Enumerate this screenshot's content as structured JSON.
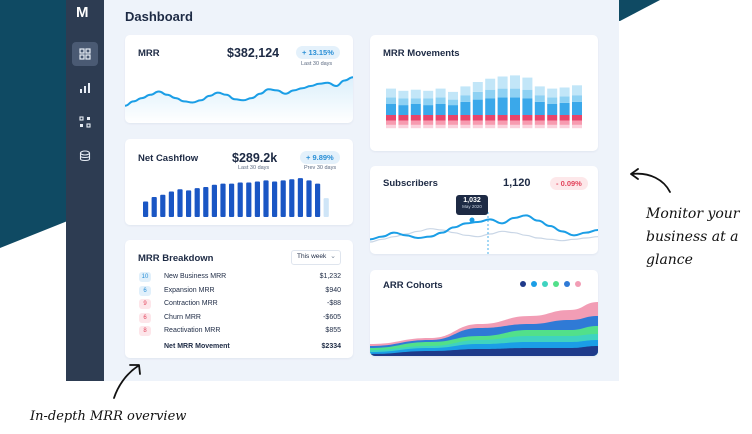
{
  "app": {
    "logo": "M",
    "title": "Dashboard"
  },
  "sidebar": {
    "items": [
      {
        "icon": "dashboard-grid-icon",
        "active": true
      },
      {
        "icon": "bar-chart-icon",
        "active": false
      },
      {
        "icon": "widgets-icon",
        "active": false
      },
      {
        "icon": "database-icon",
        "active": false
      }
    ]
  },
  "mrr": {
    "title": "MRR",
    "value": "$382,124",
    "change": "+ 13.15%",
    "period": "Last 30 days",
    "chart_data": {
      "type": "area",
      "values": [
        12,
        16,
        19,
        22,
        25,
        22,
        19,
        16,
        15,
        17,
        21,
        24,
        22,
        18,
        17,
        19,
        23,
        27,
        26,
        23,
        26,
        28,
        30,
        32,
        33,
        30,
        35,
        38
      ]
    }
  },
  "net_cashflow": {
    "title": "Net Cashflow",
    "value": "$289.2k",
    "period": "Last 30 days",
    "change": "+ 9.89%",
    "prev_period": "Prev 30 days",
    "chart_data": {
      "type": "bar",
      "values": [
        14,
        18,
        20,
        23,
        25,
        24,
        26,
        27,
        29,
        30,
        30,
        31,
        31,
        32,
        33,
        32,
        33,
        34,
        35,
        33,
        30,
        17
      ],
      "highlight_last": true
    }
  },
  "mrr_breakdown": {
    "title": "MRR Breakdown",
    "filter": "This week",
    "rows": [
      {
        "count": "10",
        "label": "New Business MRR",
        "value": "$1,232",
        "kind": "pos"
      },
      {
        "count": "6",
        "label": "Expansion MRR",
        "value": "$940",
        "kind": "pos"
      },
      {
        "count": "9",
        "label": "Contraction MRR",
        "value": "-$88",
        "kind": "neg"
      },
      {
        "count": "6",
        "label": "Churn MRR",
        "value": "-$605",
        "kind": "neg"
      },
      {
        "count": "8",
        "label": "Reactivation MRR",
        "value": "$855",
        "kind": "neg"
      }
    ],
    "total_label": "Net MRR Movement",
    "total_value": "$2334"
  },
  "mrr_movements": {
    "title": "MRR Movements",
    "chart_data": {
      "type": "bar",
      "stacks": [
        [
          10,
          6,
          8,
          5,
          4,
          3
        ],
        [
          9,
          6,
          7,
          5,
          4,
          3
        ],
        [
          10,
          5,
          8,
          5,
          4,
          3
        ],
        [
          9,
          6,
          7,
          5,
          4,
          3
        ],
        [
          10,
          6,
          8,
          5,
          4,
          3
        ],
        [
          9,
          5,
          7,
          5,
          4,
          3
        ],
        [
          12,
          6,
          8,
          5,
          4,
          3
        ],
        [
          14,
          7,
          9,
          5,
          4,
          3
        ],
        [
          15,
          8,
          10,
          5,
          4,
          3
        ],
        [
          16,
          8,
          11,
          5,
          4,
          3
        ],
        [
          16,
          8,
          12,
          5,
          4,
          3
        ],
        [
          15,
          8,
          11,
          5,
          4,
          3
        ],
        [
          12,
          6,
          8,
          5,
          4,
          3
        ],
        [
          10,
          6,
          8,
          5,
          4,
          3
        ],
        [
          11,
          6,
          8,
          5,
          4,
          3
        ],
        [
          12,
          6,
          9,
          5,
          4,
          3
        ]
      ],
      "colors": [
        "#3aa8ea",
        "#8ed1f3",
        "#c2e6f8",
        "#e8456a",
        "#f79bb0",
        "#fbd1dc"
      ]
    }
  },
  "subscribers": {
    "title": "Subscribers",
    "value": "1,120",
    "change": "- 0.09%",
    "tooltip_value": "1,032",
    "tooltip_date": "May 2020",
    "chart_data": {
      "type": "line",
      "series": [
        {
          "values": [
            8,
            10,
            13,
            11,
            9,
            10,
            13,
            17,
            20,
            21,
            23,
            20,
            24,
            26,
            22,
            18,
            14,
            11,
            13,
            15
          ]
        },
        {
          "values": [
            6,
            8,
            10,
            12,
            14,
            16,
            15,
            13,
            11,
            10,
            12,
            14,
            13,
            11,
            9,
            8,
            7,
            8,
            9,
            10
          ]
        }
      ]
    }
  },
  "arr_cohorts": {
    "title": "ARR Cohorts",
    "legend_colors": [
      "#1f3a8a",
      "#1b9ee6",
      "#3fd3c0",
      "#52e08a",
      "#2f7ad6",
      "#f29db5"
    ],
    "chart_data": {
      "type": "area",
      "layers": 6
    }
  },
  "annotations": {
    "right": "Monitor your business at a glance",
    "right_lines": [
      "Monitor your",
      "business at a",
      "glance"
    ],
    "bottom": "In-depth MRR overview"
  }
}
